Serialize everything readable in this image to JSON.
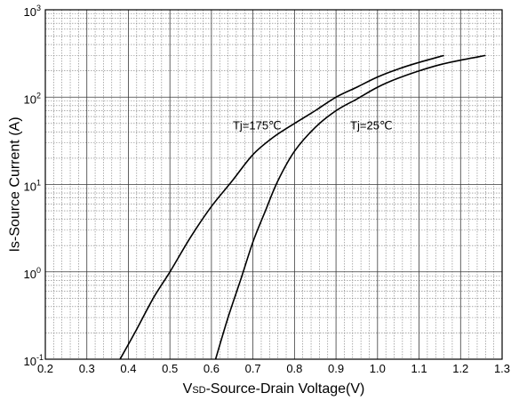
{
  "chart_data": {
    "type": "line",
    "title": "",
    "xlabel_main": "V",
    "xlabel_sub": "SD",
    "xlabel_rest": "-Source-Drain Voltage(V)",
    "ylabel": "Is-Source Current (A)",
    "xlim": [
      0.2,
      1.3
    ],
    "ylim_log10": [
      -1,
      3
    ],
    "y_scale": "log",
    "x_ticks": [
      "0.2",
      "0.3",
      "0.4",
      "0.5",
      "0.6",
      "0.7",
      "0.8",
      "0.9",
      "1.0",
      "1.1",
      "1.2",
      "1.3"
    ],
    "y_ticks": [
      {
        "base": "10",
        "exp": "-1",
        "log": -1
      },
      {
        "base": "10",
        "exp": "0",
        "log": 0
      },
      {
        "base": "10",
        "exp": "1",
        "log": 1
      },
      {
        "base": "10",
        "exp": "2",
        "log": 2
      },
      {
        "base": "10",
        "exp": "3",
        "log": 3
      }
    ],
    "grid": true,
    "series": [
      {
        "name": "Tj=175℃",
        "points": [
          [
            0.38,
            0.1
          ],
          [
            0.42,
            0.22
          ],
          [
            0.46,
            0.5
          ],
          [
            0.5,
            1.0
          ],
          [
            0.55,
            2.5
          ],
          [
            0.6,
            5.6
          ],
          [
            0.65,
            11
          ],
          [
            0.7,
            22
          ],
          [
            0.75,
            35
          ],
          [
            0.8,
            50
          ],
          [
            0.85,
            70
          ],
          [
            0.9,
            100
          ],
          [
            0.95,
            130
          ],
          [
            1.0,
            170
          ],
          [
            1.05,
            210
          ],
          [
            1.1,
            250
          ],
          [
            1.16,
            300
          ]
        ]
      },
      {
        "name": "Tj=25℃",
        "points": [
          [
            0.61,
            0.1
          ],
          [
            0.64,
            0.3
          ],
          [
            0.67,
            0.8
          ],
          [
            0.7,
            2.2
          ],
          [
            0.73,
            5.0
          ],
          [
            0.76,
            11
          ],
          [
            0.8,
            24
          ],
          [
            0.85,
            45
          ],
          [
            0.9,
            70
          ],
          [
            0.95,
            95
          ],
          [
            1.0,
            130
          ],
          [
            1.05,
            165
          ],
          [
            1.1,
            200
          ],
          [
            1.15,
            235
          ],
          [
            1.2,
            265
          ],
          [
            1.26,
            300
          ]
        ]
      }
    ],
    "annotations": [
      {
        "text": "Tj=175℃",
        "x": 0.71,
        "y": 48
      },
      {
        "text": "Tj=25℃",
        "x": 0.985,
        "y": 48
      }
    ]
  }
}
